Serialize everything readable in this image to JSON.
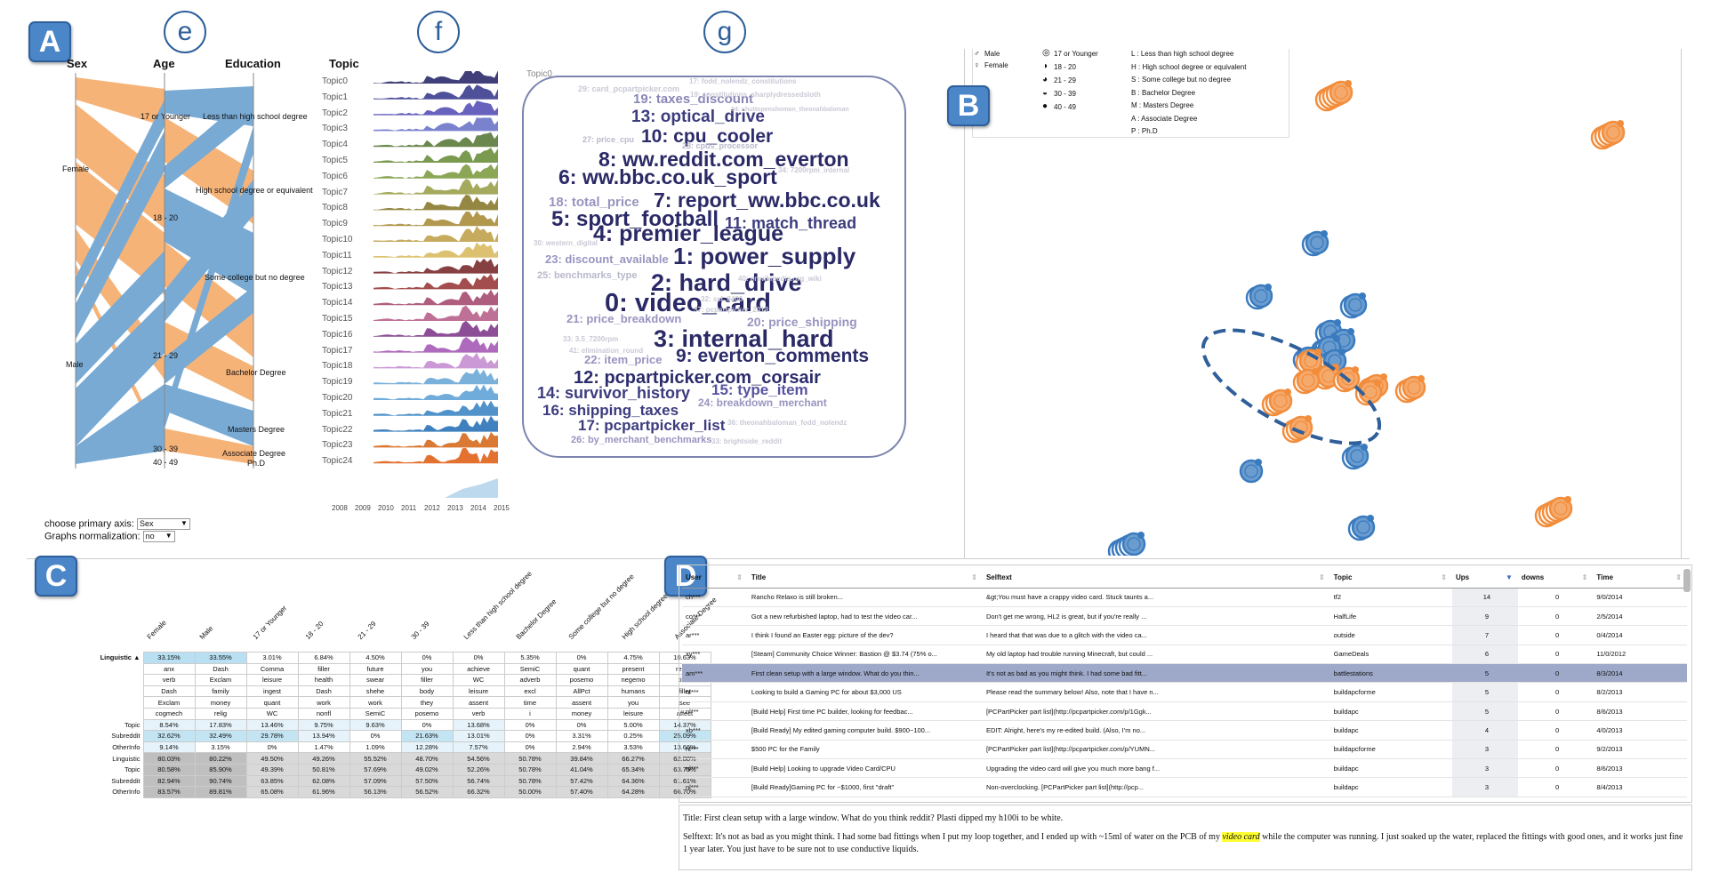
{
  "badges": {
    "a": "A",
    "b": "B",
    "c": "C",
    "d": "D",
    "e": "e",
    "f": "f",
    "g": "g"
  },
  "axes": {
    "sex": "Sex",
    "age": "Age",
    "education": "Education",
    "topic": "Topic"
  },
  "sex_labels": [
    "Female",
    "Male"
  ],
  "age_labels": [
    "17 or Younger",
    "18 - 20",
    "21 - 29",
    "30 - 39",
    "40 - 49"
  ],
  "edu_labels": [
    "Less than high school degree",
    "High school degree or equivalent",
    "Some college but no degree",
    "Bachelor Degree",
    "Masters Degree",
    "Associate Degree",
    "Ph.D"
  ],
  "topics": [
    "Topic0",
    "Topic1",
    "Topic2",
    "Topic3",
    "Topic4",
    "Topic5",
    "Topic6",
    "Topic7",
    "Topic8",
    "Topic9",
    "Topic10",
    "Topic11",
    "Topic12",
    "Topic13",
    "Topic14",
    "Topic15",
    "Topic16",
    "Topic17",
    "Topic18",
    "Topic19",
    "Topic20",
    "Topic21",
    "Topic22",
    "Topic23",
    "Topic24"
  ],
  "topic_colors": [
    "#2b2a6a",
    "#3c3d8f",
    "#5751b6",
    "#6b74c8",
    "#5a7a3a",
    "#6b8f3d",
    "#7e9c43",
    "#9aa04a",
    "#8a7a2e",
    "#a88d3a",
    "#c0a24d",
    "#d8bb60",
    "#7a2b2e",
    "#9a3a3b",
    "#a54b70",
    "#b8608b",
    "#823b8c",
    "#a55ab6",
    "#c58ed1",
    "#6aa9d6",
    "#5fa3d8",
    "#3f86c4",
    "#2a73b7",
    "#d66a1e",
    "#e0621a"
  ],
  "years": [
    "2008",
    "2009",
    "2010",
    "2011",
    "2012",
    "2013",
    "2014",
    "2015"
  ],
  "controls": {
    "primary_label": "choose primary axis:",
    "primary_value": "Sex",
    "norm_label": "Graphs normalization:",
    "norm_value": "no"
  },
  "wordcloud_title": "Topic0",
  "wordcloud": [
    {
      "t": "29: card_pcpartpicker.com",
      "c": "#c9c9d6",
      "s": 9
    },
    {
      "t": "17: fodd_nolendz_constitutions",
      "c": "#c9c9d6",
      "s": 8
    },
    {
      "t": "19: taxes_discount",
      "c": "#8a86b8",
      "s": 15
    },
    {
      "t": "19: constitutions_sharplydressedsloth",
      "c": "#c9c9d6",
      "s": 8
    },
    {
      "t": "13: optical_drive",
      "c": "#3c3b7e",
      "s": 19
    },
    {
      "t": "34: shuttopenshoman_theonahbaloman",
      "c": "#c9c9d6",
      "s": 7
    },
    {
      "t": "10: cpu_cooler",
      "c": "#2d2c6b",
      "s": 21
    },
    {
      "t": "27: price_cpu",
      "c": "#b8b8cc",
      "s": 9
    },
    {
      "t": "28: cpus_processor",
      "c": "#b8b8cc",
      "s": 9
    },
    {
      "t": "8: ww.reddit.com_everton",
      "c": "#2a2966",
      "s": 23
    },
    {
      "t": "6: ww.bbc.co.uk_sport",
      "c": "#2a2966",
      "s": 23
    },
    {
      "t": "34: 7200rpm_internal",
      "c": "#c9c9d6",
      "s": 8
    },
    {
      "t": "18: total_price",
      "c": "#9894c0",
      "s": 15
    },
    {
      "t": "7: report_ww.bbc.co.uk",
      "c": "#2a2966",
      "s": 23
    },
    {
      "t": "5: sport_football",
      "c": "#2a2966",
      "s": 24
    },
    {
      "t": "11: match_thread",
      "c": "#3c3b7e",
      "s": 18
    },
    {
      "t": "4: premier_league",
      "c": "#2a2966",
      "s": 25
    },
    {
      "t": "30: western_digital",
      "c": "#c9c9d6",
      "s": 8
    },
    {
      "t": "23: discount_available",
      "c": "#9894c0",
      "s": 13
    },
    {
      "t": "1: power_supply",
      "c": "#2a2966",
      "s": 26
    },
    {
      "t": "25: benchmarks_type",
      "c": "#b8b8cc",
      "s": 11
    },
    {
      "t": "2: hard_drive",
      "c": "#2a2966",
      "s": 27
    },
    {
      "t": "40: enwikipedia.org_wiki",
      "c": "#c9c9d6",
      "s": 8
    },
    {
      "t": "0: video_card",
      "c": "#2a2966",
      "s": 29
    },
    {
      "t": "32: ssl_8400",
      "c": "#c9c9d6",
      "s": 8
    },
    {
      "t": "37: pcpartpicker_2013",
      "c": "#c9c9d6",
      "s": 8
    },
    {
      "t": "21: price_breakdown",
      "c": "#9894c0",
      "s": 13
    },
    {
      "t": "20: price_shipping",
      "c": "#9894c0",
      "s": 14
    },
    {
      "t": "33: 3.5_7200rpm",
      "c": "#c9c9d6",
      "s": 8
    },
    {
      "t": "3: internal_hard",
      "c": "#2a2966",
      "s": 27
    },
    {
      "t": "41: elimination_round",
      "c": "#c9c9d6",
      "s": 8
    },
    {
      "t": "22: item_price",
      "c": "#9894c0",
      "s": 13
    },
    {
      "t": "9: everton_comments",
      "c": "#2d2c6b",
      "s": 21
    },
    {
      "t": "12: pcpartpicker.com_corsair",
      "c": "#2d2c6b",
      "s": 20
    },
    {
      "t": "14: survivor_history",
      "c": "#3c3b7e",
      "s": 18
    },
    {
      "t": "15: type_item",
      "c": "#5753a1",
      "s": 17
    },
    {
      "t": "16: shipping_taxes",
      "c": "#3c3b7e",
      "s": 17
    },
    {
      "t": "24: breakdown_merchant",
      "c": "#9894c0",
      "s": 12
    },
    {
      "t": "17: pcpartpicker_list",
      "c": "#3c3b7e",
      "s": 17
    },
    {
      "t": "36: theonahbaloman_fodd_nolendz",
      "c": "#c9c9d6",
      "s": 8
    },
    {
      "t": "26: by_merchant_benchmarks",
      "c": "#9894c0",
      "s": 11
    },
    {
      "t": "33: brightside_reddit",
      "c": "#c9c9d6",
      "s": 8
    }
  ],
  "legend": {
    "sex": [
      "Male",
      "Female"
    ],
    "age": [
      "17 or Younger",
      "18 - 20",
      "21 - 29",
      "30 - 39",
      "40 - 49"
    ],
    "edu": [
      "L : Less than high school degree",
      "H : High school degree or equivalent",
      "S : Some college but no degree",
      "B : Bachelor Degree",
      "M : Masters Degree",
      "A : Associate Degree",
      "P : Ph.D"
    ]
  },
  "tableC": {
    "columns": [
      "Female",
      "Male",
      "17 or Younger",
      "18 - 20",
      "21 - 29",
      "30 - 39",
      "Less than high school degree",
      "Bachelor Degree",
      "Some college but no degree",
      "High school degree or equivalent",
      "Associate Degree"
    ],
    "row_header": "Linguistic ▲",
    "rows": [
      {
        "label": "Linguistic ▲",
        "cells": [
          "33.15%",
          "33.55%",
          "3.01%",
          "6.84%",
          "4.50%",
          "0%",
          "0%",
          "5.35%",
          "0%",
          "4.75%",
          "10.63%"
        ],
        "hl": [
          true,
          true,
          false,
          false,
          false,
          false,
          false,
          false,
          false,
          false,
          false
        ]
      },
      {
        "label": "",
        "cells": [
          "anx",
          "Dash",
          "Comma",
          "filler",
          "future",
          "you",
          "achieve",
          "SemiC",
          "quant",
          "present",
          "relativ"
        ]
      },
      {
        "label": "",
        "cells": [
          "verb",
          "Exclam",
          "leisure",
          "health",
          "swear",
          "filler",
          "WC",
          "adverb",
          "posemo",
          "negemo",
          "time"
        ]
      },
      {
        "label": "",
        "cells": [
          "Dash",
          "family",
          "ingest",
          "Dash",
          "shehe",
          "body",
          "leisure",
          "excl",
          "AllPct",
          "humans",
          "filler"
        ]
      },
      {
        "label": "",
        "cells": [
          "Exclam",
          "money",
          "quant",
          "work",
          "work",
          "they",
          "assent",
          "time",
          "assent",
          "you",
          "see"
        ]
      },
      {
        "label": "",
        "cells": [
          "cogmech",
          "relig",
          "WC",
          "nonfl",
          "SemiC",
          "posemo",
          "verb",
          "i",
          "money",
          "leisure",
          "affect"
        ]
      },
      {
        "label": "Topic",
        "cells": [
          "8.54%",
          "17.83%",
          "13.46%",
          "9.75%",
          "9.63%",
          "0%",
          "13.68%",
          "0%",
          "0%",
          "5.00%",
          "14.37%"
        ]
      },
      {
        "label": "Subreddit",
        "cells": [
          "32.62%",
          "32.49%",
          "29.78%",
          "13.94%",
          "0%",
          "21.63%",
          "13.01%",
          "0%",
          "3.31%",
          "0.25%",
          "25.09%"
        ]
      },
      {
        "label": "OtherInfo",
        "cells": [
          "9.14%",
          "3.15%",
          "0%",
          "1.47%",
          "1.09%",
          "12.28%",
          "7.57%",
          "0%",
          "2.94%",
          "3.53%",
          "13.66%"
        ]
      },
      {
        "label": "Linguistic",
        "cells": [
          "80.03%",
          "80.22%",
          "49.50%",
          "49.26%",
          "55.52%",
          "48.70%",
          "54.56%",
          "50.78%",
          "39.84%",
          "66.27%",
          "62.88%"
        ]
      },
      {
        "label": "Topic",
        "cells": [
          "80.58%",
          "85.90%",
          "49.39%",
          "50.81%",
          "57.69%",
          "49.02%",
          "52.26%",
          "50.78%",
          "41.04%",
          "65.34%",
          "63.75%"
        ]
      },
      {
        "label": "Subreddit",
        "cells": [
          "82.94%",
          "90.74%",
          "63.85%",
          "62.08%",
          "57.09%",
          "57.50%",
          "56.74%",
          "50.78%",
          "57.42%",
          "64.36%",
          "61.61%"
        ]
      },
      {
        "label": "OtherInfo",
        "cells": [
          "83.57%",
          "89.81%",
          "65.08%",
          "61.96%",
          "56.13%",
          "56.52%",
          "66.32%",
          "50.00%",
          "57.40%",
          "64.28%",
          "66.70%"
        ]
      }
    ]
  },
  "tableD": {
    "headers": [
      "User",
      "Title",
      "Selftext",
      "Topic",
      "Ups",
      "downs",
      "Time"
    ],
    "rows": [
      [
        "ch***",
        "Rancho Relaxo is still broken...",
        "&gt;You must have a crappy video card. Stuck taunts a...",
        "tf2",
        "14",
        "0",
        "9/0/2014"
      ],
      [
        "co***",
        "Got a new refurbished laptop, had to test the video car...",
        "Don't get me wrong, HL2 is great, but if you're really ...",
        "HalfLife",
        "9",
        "0",
        "2/5/2014"
      ],
      [
        "ar***",
        "I think I found an Easter egg: picture of the dev?",
        "I heard that that was due to a glitch with the video ca...",
        "outside",
        "7",
        "0",
        "0/4/2014"
      ],
      [
        "xy***",
        "[Steam] Community Choice Winner: Bastion @ $3.74 (75% o...",
        "My old laptop had trouble running Minecraft, but could ...",
        "GameDeals",
        "6",
        "0",
        "11/0/2012"
      ],
      [
        "am***",
        "First clean setup with a large window. What do you thin...",
        "It's not as bad as you might think. I had some bad fitt...",
        "battlestations",
        "5",
        "0",
        "8/3/2014"
      ],
      [
        "nl***",
        "Looking to build a Gaming PC for about $3,000 US",
        "Please read the summary below! Also, note that I have n...",
        "buildapcforme",
        "5",
        "0",
        "8/2/2013"
      ],
      [
        "nl***",
        "[Build Help] First time PC builder, looking for feedbac...",
        "[PCPartPicker part list](http://pcpartpicker.com/p/1Ggk...",
        "buildapc",
        "5",
        "0",
        "8/6/2013"
      ],
      [
        "xb***",
        "[Build Ready] My edited gaming computer build. $900~100...",
        "EDIT: Alright, here's my re-edited build. (Also, I'm no...",
        "buildapc",
        "4",
        "0",
        "4/0/2013"
      ],
      [
        "nl***",
        "$500 PC for the Family",
        "[PCPartPicker part list](http://pcpartpicker.com/p/YUMN...",
        "buildapcforme",
        "3",
        "0",
        "9/2/2013"
      ],
      [
        "nl***",
        "[Build Help] Looking to upgrade Video Card/CPU",
        "Upgrading the video card will give you much more bang f...",
        "buildapc",
        "3",
        "0",
        "8/6/2013"
      ],
      [
        "nl***",
        "[Build Ready]Gaming PC for ~$1000, first \"draft\"",
        "Non-overclocking. [PCPartPicker part list](http://pcp...",
        "buildapc",
        "3",
        "0",
        "8/4/2013"
      ]
    ],
    "selected": 4
  },
  "detail": {
    "title": "Title: First clean setup with a large window. What do you think reddit? Plasti dipped my h100i to be white.",
    "self_pre": "Selftext: It's not as bad as you might think. I had some bad fittings when I put my loop together, and I ended up with ~15ml of water on the PCB of my ",
    "self_hl": "video card",
    "self_post": " while the computer was running. I just soaked up the water, replaced the fittings with good ones, and it works just fine 1 year later. You just have to be sure not to use conductive liquids."
  },
  "colors": {
    "orange": "#f39a4c",
    "blue": "#4d8ec6",
    "darkblue": "#2f6ea8",
    "navy": "#2a2966",
    "select": "#9ea9c9"
  }
}
